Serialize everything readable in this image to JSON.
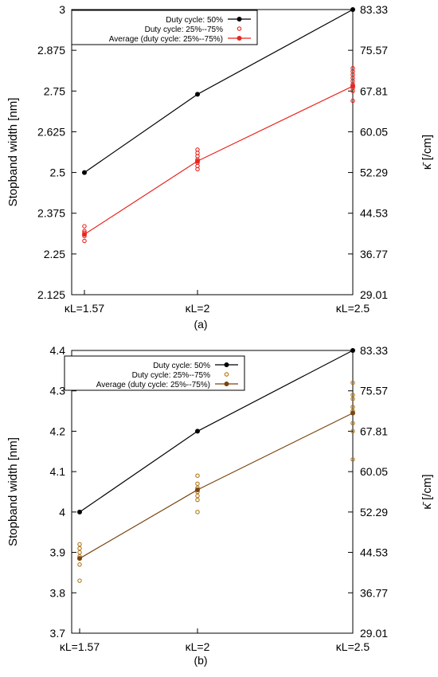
{
  "chart_data": [
    {
      "type": "scatter",
      "panel_label": "(a)",
      "categories": [
        "κL=1.57",
        "κL=2",
        "κL=2.5"
      ],
      "ylabel": "Stopband width [nm]",
      "y2label": "κ̄ [/cm]",
      "ylim": [
        2.125,
        3.0
      ],
      "yticks": [
        "2.125",
        "2.25",
        "2.375",
        "2.5",
        "2.625",
        "2.75",
        "2.875",
        "3"
      ],
      "y2ticks": [
        "29.01",
        "36.77",
        "44.53",
        "52.29",
        "60.05",
        "67.81",
        "75.57",
        "83.33"
      ],
      "grid": false,
      "legend_position": "top-left",
      "series": [
        {
          "name": "Duty cycle: 50%",
          "style": "line-points",
          "color": "#000000",
          "values": [
            2.5,
            2.74,
            3.0
          ]
        },
        {
          "name": "Duty cycle: 25%--75%",
          "style": "open-points",
          "color": "#e8261f",
          "points": [
            [
              2.335,
              2.32,
              2.315,
              2.31,
              2.305,
              2.29
            ],
            [
              2.57,
              2.56,
              2.55,
              2.54,
              2.535,
              2.53,
              2.52,
              2.51
            ],
            [
              2.82,
              2.81,
              2.8,
              2.79,
              2.78,
              2.77,
              2.765,
              2.76,
              2.75,
              2.72
            ]
          ]
        },
        {
          "name": "Average (duty cycle: 25%--75%)",
          "style": "line-points",
          "color": "#e8261f",
          "values": [
            2.31,
            2.535,
            2.765
          ]
        }
      ]
    },
    {
      "type": "scatter",
      "panel_label": "(b)",
      "categories": [
        "κL=1.57",
        "κL=2",
        "κL=2.5"
      ],
      "ylabel": "Stopband width [nm]",
      "y2label": "κ̄ [/cm]",
      "ylim": [
        3.7,
        4.4
      ],
      "yticks": [
        "3.7",
        "3.8",
        "3.9",
        "4",
        "4.1",
        "4.2",
        "4.3",
        "4.4"
      ],
      "y2ticks": [
        "29.01",
        "36.77",
        "44.53",
        "52.29",
        "60.05",
        "67.81",
        "75.57",
        "83.33"
      ],
      "grid": false,
      "legend_position": "top-left",
      "series": [
        {
          "name": "Duty cycle: 50%",
          "style": "line-points",
          "color": "#000000",
          "values": [
            4.0,
            4.2,
            4.4
          ]
        },
        {
          "name": "Duty cycle: 25%--75%",
          "style": "open-points",
          "color": "#b07818",
          "points": [
            [
              3.92,
              3.91,
              3.9,
              3.89,
              3.87,
              3.83
            ],
            [
              4.09,
              4.07,
              4.06,
              4.05,
              4.04,
              4.03,
              4.0
            ],
            [
              4.32,
              4.29,
              4.28,
              4.26,
              4.25,
              4.22,
              4.2,
              4.13
            ]
          ]
        },
        {
          "name": "Average (duty cycle: 25%--75%)",
          "style": "line-points",
          "color": "#7a4510",
          "values": [
            3.885,
            4.055,
            4.245
          ]
        }
      ]
    }
  ]
}
